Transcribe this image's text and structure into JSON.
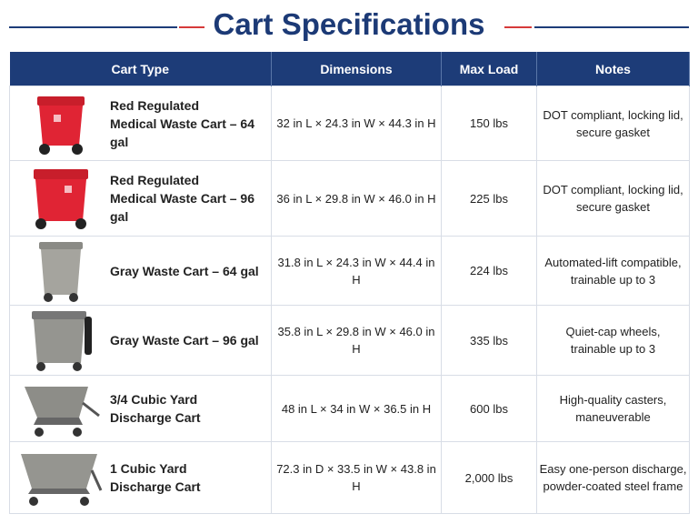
{
  "header": {
    "title": "Cart Specifications"
  },
  "table": {
    "columns": [
      "Cart Type",
      "Dimensions",
      "Max Load",
      "Notes"
    ],
    "rows": [
      {
        "name": [
          "Red Regulated",
          "Medical Waste Cart – 64 gal"
        ],
        "dimensions": "32 in L × 24.3 in W × 44.3 in H",
        "max_load": "150 lbs",
        "notes": [
          "DOT compliant, locking lid,",
          "secure gasket"
        ]
      },
      {
        "name": [
          "Red Regulated",
          "Medical Waste Cart – 96 gal"
        ],
        "dimensions": "36 in L × 29.8 in W × 46.0 in H",
        "max_load": "225 lbs",
        "notes": [
          "DOT compliant, locking lid,",
          "secure gasket"
        ]
      },
      {
        "name": [
          "Gray Waste Cart – 64 gal"
        ],
        "dimensions": "31.8 in L × 24.3 in W × 44.4 in H",
        "max_load": "224 lbs",
        "notes": [
          "Automated-lift compatible,",
          "trainable up to 3"
        ]
      },
      {
        "name": [
          "Gray Waste Cart – 96 gal"
        ],
        "dimensions": "35.8 in L × 29.8 in W × 46.0 in H",
        "max_load": "335 lbs",
        "notes": [
          "Quiet-cap wheels,",
          "trainable up to 3"
        ]
      },
      {
        "name": [
          "3/4 Cubic Yard",
          "Discharge Cart"
        ],
        "dimensions": "48 in L × 34 in W × 36.5 in H",
        "max_load": "600 lbs",
        "notes": [
          "High-quality casters,",
          "maneuverable"
        ]
      },
      {
        "name": [
          "1 Cubic Yard",
          "Discharge Cart"
        ],
        "dimensions": "72.3 in D × 33.5 in W × 43.8 in H",
        "max_load": "2,000 lbs",
        "notes": [
          "Easy one-person discharge,",
          "powder-coated steel frame"
        ]
      }
    ]
  }
}
